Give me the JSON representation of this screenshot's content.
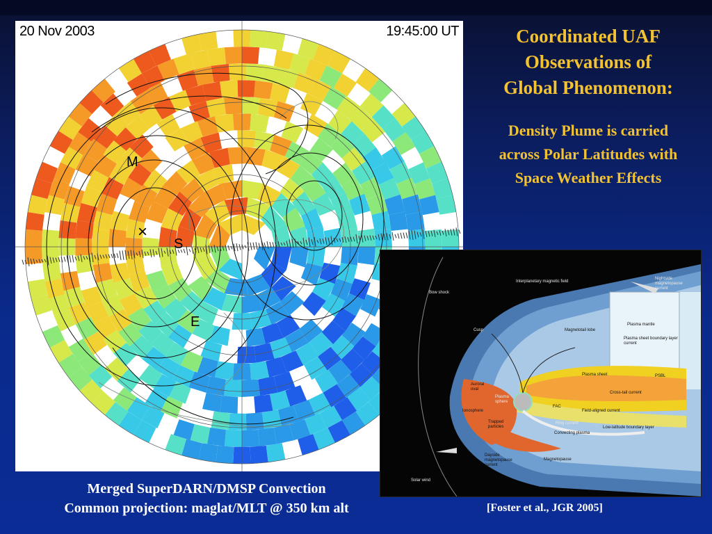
{
  "polar_plot": {
    "date": "20 Nov 2003",
    "time": "19:45:00 UT",
    "markers": [
      "M",
      "×",
      "S",
      "E"
    ]
  },
  "title": {
    "line1": "Coordinated UAF",
    "line2": "Observations of",
    "line3": "Global Phenomenon:",
    "sub1": "Density Plume is carried",
    "sub2": "across Polar Latitudes with",
    "sub3": "Space Weather Effects"
  },
  "magnetosphere": {
    "labels": {
      "bow_shock": "Bow shock",
      "imf": "Interplanetary magnetic field",
      "nightside_current": "Nightside magnetopause current",
      "cusp": "Cusp",
      "magnetotail_lobe": "Magnetotail lobe",
      "plasma_mantle": "Plasma mantle",
      "psbl_current": "Plasma sheet boundary layer current",
      "psbl": "PSBL",
      "plasma_sheet": "Plasma sheet",
      "auroral_oval": "Auroral oval",
      "plasmasphere": "Plasma sphere",
      "cross_tail": "Cross-tail current",
      "fac": "FAC",
      "field_aligned": "Field-aligned current",
      "ionosphere": "Ionosphere",
      "ring_current": "Ring current",
      "trapped": "Trapped particles",
      "convecting": "Convecting plasma",
      "llbl": "Low-latitude boundary layer",
      "dayside_current": "Dayside magnetopause current",
      "magnetopause": "Magnetopause",
      "solar_wind": "Solar wind"
    }
  },
  "caption": {
    "line1": "Merged SuperDARN/DMSP Convection",
    "line2": "Common projection: maglat/MLT @ 350 km alt"
  },
  "citation": "[Foster et al., JGR 2005]",
  "colors": {
    "background": "#0a2a8c",
    "title": "#f2c233",
    "caption": "#ffffff"
  }
}
